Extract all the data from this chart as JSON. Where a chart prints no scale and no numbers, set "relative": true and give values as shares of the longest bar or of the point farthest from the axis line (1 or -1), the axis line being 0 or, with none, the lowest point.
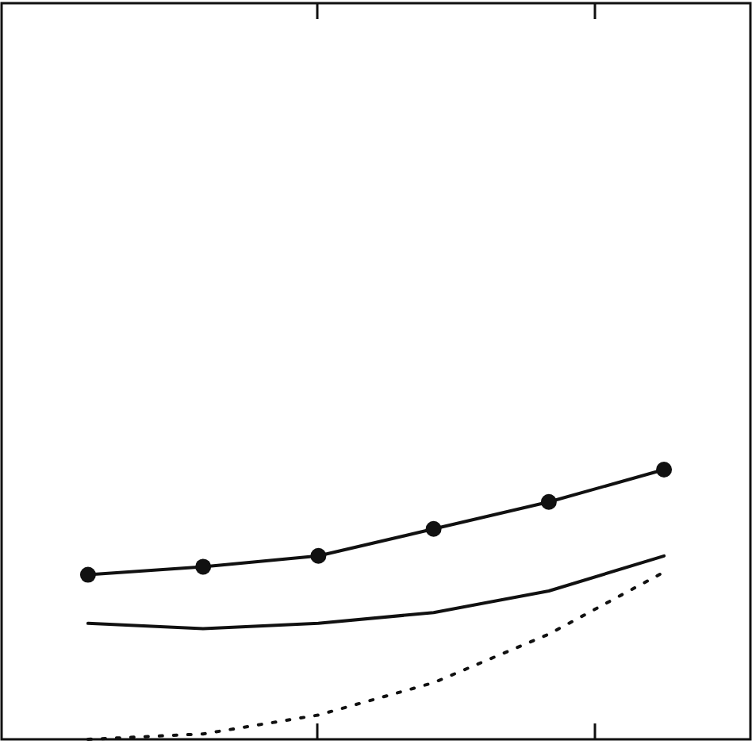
{
  "chart_data": {
    "type": "line",
    "relative": true,
    "categories": [
      null,
      null,
      null,
      null,
      null,
      null
    ],
    "series": [
      {
        "color": "#111111",
        "marker": "circle",
        "line_style": "solid",
        "values": [
          0.61,
          0.64,
          0.68,
          0.78,
          0.88,
          1
        ]
      },
      {
        "color": "#111111",
        "marker": "none",
        "line_style": "solid",
        "values": [
          0.43,
          0.41,
          0.43,
          0.47,
          0.55,
          0.68
        ]
      },
      {
        "color": "#111111",
        "marker": "none",
        "line_style": "dotted",
        "values": [
          0,
          0.02,
          0.09,
          0.21,
          0.39,
          0.62
        ]
      }
    ]
  }
}
